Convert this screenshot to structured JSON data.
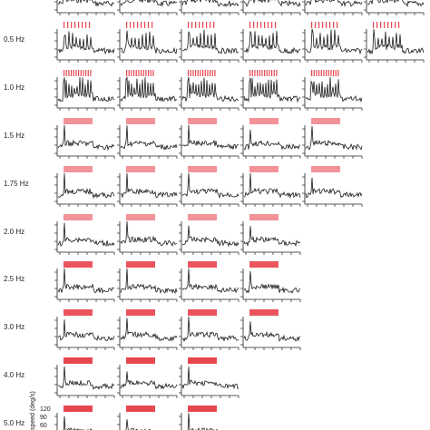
{
  "chart_data": {
    "type": "line",
    "description_kind": "grid of small-multiple speed traces",
    "rows": [
      {
        "label": "",
        "n_panels": 6,
        "stim": "light-dashed"
      },
      {
        "label": "0.5 Hz",
        "n_panels": 6,
        "stim": "sparse-dashed"
      },
      {
        "label": "1.0 Hz",
        "n_panels": 5,
        "stim": "dashed"
      },
      {
        "label": "1.5 Hz",
        "n_panels": 5,
        "stim": "light-bar"
      },
      {
        "label": "1.75 Hz",
        "n_panels": 5,
        "stim": "light-bar"
      },
      {
        "label": "2.0 Hz",
        "n_panels": 4,
        "stim": "light-bar"
      },
      {
        "label": "2.5 Hz",
        "n_panels": 4,
        "stim": "bar"
      },
      {
        "label": "3.0 Hz",
        "n_panels": 4,
        "stim": "bar"
      },
      {
        "label": "4.0 Hz",
        "n_panels": 3,
        "stim": "dark-bar"
      },
      {
        "label": "5.0 Hz",
        "n_panels": 3,
        "stim": "dark-bar"
      }
    ],
    "ylabel": "speed (deg/s)",
    "yticks": [
      "120",
      "90",
      "60"
    ],
    "colors": {
      "trace": "#1a1a1a",
      "stim": "#e8474f",
      "stim_light": "#f08a8f",
      "axis": "#222222"
    }
  }
}
